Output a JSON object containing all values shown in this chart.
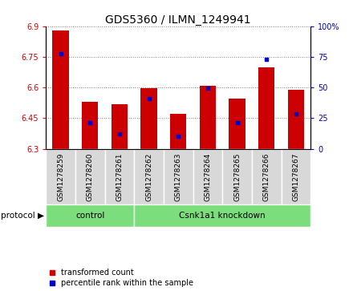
{
  "title": "GDS5360 / ILMN_1249941",
  "samples": [
    "GSM1278259",
    "GSM1278260",
    "GSM1278261",
    "GSM1278262",
    "GSM1278263",
    "GSM1278264",
    "GSM1278265",
    "GSM1278266",
    "GSM1278267"
  ],
  "bar_tops": [
    6.88,
    6.53,
    6.52,
    6.595,
    6.47,
    6.61,
    6.545,
    6.7,
    6.59
  ],
  "bar_base": 6.3,
  "blue_dot_values": [
    6.765,
    6.428,
    6.375,
    6.545,
    6.363,
    6.595,
    6.43,
    6.738,
    6.47
  ],
  "ylim": [
    6.3,
    6.9
  ],
  "yticks": [
    6.3,
    6.45,
    6.6,
    6.75,
    6.9
  ],
  "right_yticks": [
    0,
    25,
    50,
    75,
    100
  ],
  "bar_color": "#cc0000",
  "dot_color": "#0000cc",
  "control_label": "control",
  "knockdown_label": "Csnk1a1 knockdown",
  "control_count": 3,
  "protocol_label": "protocol",
  "legend_bar": "transformed count",
  "legend_dot": "percentile rank within the sample",
  "sample_bg_color": "#d8d8d8",
  "group_bg_color": "#7cdd7c",
  "plot_bg_color": "#ffffff",
  "title_fontsize": 10,
  "tick_fontsize": 7,
  "sample_fontsize": 6.5,
  "label_fontsize": 7.5,
  "legend_fontsize": 7
}
